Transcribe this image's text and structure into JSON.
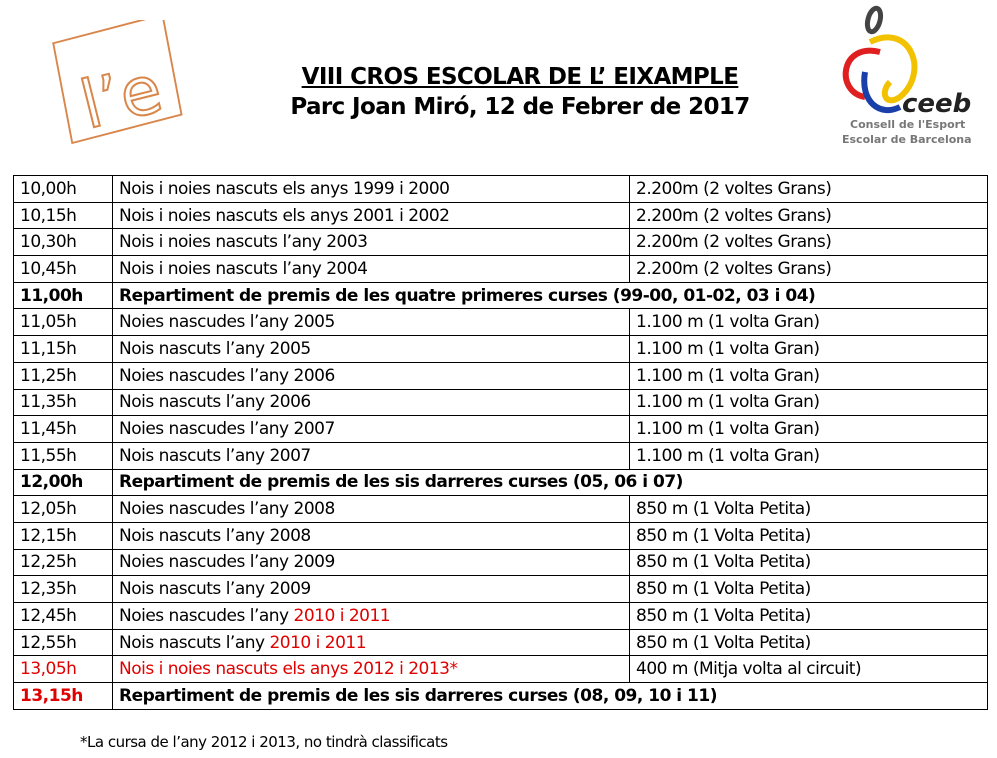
{
  "header": {
    "title": "VIII CROS ESCOLAR DE L’ EIXAMPLE",
    "subtitle": "Parc Joan Miró, 12 de Febrer de 2017",
    "logo_left_text": "l’e",
    "logo_right": {
      "brand": "ceeb",
      "line1": "Consell de l'Esport",
      "line2": "Escolar de Barcelona"
    }
  },
  "colors": {
    "highlight": "#e00000",
    "logo_left": "#d9864a"
  },
  "schedule": [
    {
      "time": "10,00h",
      "desc": "Nois i noies nascuts els anys 1999 i 2000",
      "distance": "2.200m (2 voltes Grans)"
    },
    {
      "time": "10,15h",
      "desc": "Nois i noies nascuts els anys 2001 i 2002",
      "distance": "2.200m (2 voltes Grans)"
    },
    {
      "time": "10,30h",
      "desc": "Nois i noies nascuts l’any 2003",
      "distance": "2.200m (2 voltes Grans)"
    },
    {
      "time": "10,45h",
      "desc": "Nois i noies nascuts l’any 2004",
      "distance": "2.200m (2 voltes Grans)"
    },
    {
      "time": "11,00h",
      "award": "Repartiment de premis de les quatre primeres curses (99-00, 01-02, 03 i 04)"
    },
    {
      "time": "11,05h",
      "desc": "Noies nascudes l’any 2005",
      "distance": "1.100 m (1 volta Gran)"
    },
    {
      "time": "11,15h",
      "desc": "Nois nascuts l’any 2005",
      "distance": "1.100 m (1 volta Gran)"
    },
    {
      "time": "11,25h",
      "desc": "Noies nascudes l’any 2006",
      "distance": "1.100 m (1 volta Gran)"
    },
    {
      "time": "11,35h",
      "desc": "Nois nascuts l’any 2006",
      "distance": "1.100 m (1 volta Gran)"
    },
    {
      "time": "11,45h",
      "desc": "Noies nascudes l’any 2007",
      "distance": "1.100 m (1 volta Gran)"
    },
    {
      "time": "11,55h",
      "desc": "Nois nascuts l’any 2007",
      "distance": "1.100 m (1 volta Gran)"
    },
    {
      "time": "12,00h",
      "award": "Repartiment de premis de les sis darreres curses (05, 06 i 07)"
    },
    {
      "time": "12,05h",
      "desc": "Noies nascudes l’any 2008",
      "distance": "850 m (1 Volta Petita)"
    },
    {
      "time": "12,15h",
      "desc": "Nois nascuts l’any 2008",
      "distance": "850 m (1 Volta Petita)"
    },
    {
      "time": "12,25h",
      "desc": "Noies nascudes l’any 2009",
      "distance": "850 m (1 Volta Petita)"
    },
    {
      "time": "12,35h",
      "desc": "Nois nascuts l’any 2009",
      "distance": "850 m (1 Volta Petita)"
    },
    {
      "time": "12,45h",
      "desc": "Noies nascudes l’any ",
      "desc_red": "2010 i 2011",
      "distance": "850 m (1 Volta Petita)"
    },
    {
      "time": "12,55h",
      "desc": "Nois nascuts l’any ",
      "desc_red": "2010 i 2011",
      "distance": "850 m (1 Volta Petita)"
    },
    {
      "time": "13,05h",
      "desc": "Nois i noies nascuts els anys 2012 i 2013*",
      "distance": "400 m (Mitja volta al circuit)",
      "red": true
    },
    {
      "time": "13,15h",
      "award": "Repartiment de premis de les sis darreres curses (08, 09, 10 i 11)",
      "red_time": true
    }
  ],
  "footnote": "*La cursa de l’any 2012 i 2013, no tindrà classificats"
}
